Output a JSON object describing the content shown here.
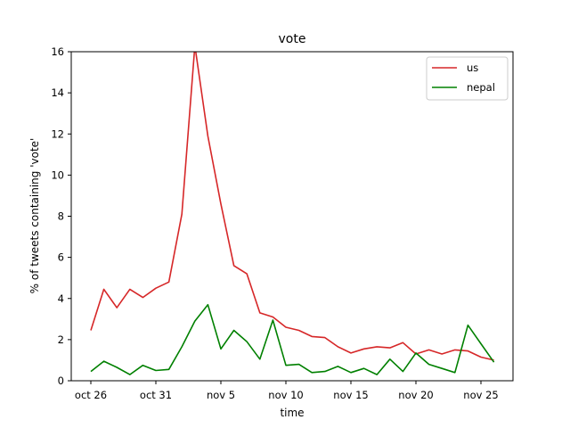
{
  "chart_data": {
    "type": "line",
    "title": "vote",
    "xlabel": "time",
    "ylabel": "% of tweets containing 'vote'",
    "x_dates": [
      "oct 26",
      "oct 27",
      "oct 28",
      "oct 29",
      "oct 30",
      "oct 31",
      "nov 1",
      "nov 2",
      "nov 3",
      "nov 4",
      "nov 5",
      "nov 6",
      "nov 7",
      "nov 8",
      "nov 9",
      "nov 10",
      "nov 11",
      "nov 12",
      "nov 13",
      "nov 14",
      "nov 15",
      "nov 16",
      "nov 17",
      "nov 18",
      "nov 19",
      "nov 20",
      "nov 21",
      "nov 22",
      "nov 23",
      "nov 24",
      "nov 25",
      "nov 26"
    ],
    "xticks": [
      "oct 26",
      "oct 31",
      "nov 5",
      "nov 10",
      "nov 15",
      "nov 20",
      "nov 25"
    ],
    "ylim": [
      0,
      16
    ],
    "yticks": [
      "0",
      "2",
      "4",
      "6",
      "8",
      "10",
      "12",
      "14",
      "16"
    ],
    "grid": false,
    "legend_position": "top-right",
    "series": [
      {
        "name": "us",
        "color": "#d62728",
        "values": [
          2.45,
          4.45,
          3.55,
          4.45,
          4.05,
          4.5,
          4.8,
          8.1,
          16.3,
          11.9,
          8.6,
          5.6,
          5.2,
          3.3,
          3.1,
          2.6,
          2.45,
          2.15,
          2.1,
          1.65,
          1.35,
          1.55,
          1.65,
          1.6,
          1.85,
          1.3,
          1.5,
          1.3,
          1.5,
          1.45,
          1.15,
          1.0
        ]
      },
      {
        "name": "nepal",
        "color": "#008000",
        "values": [
          0.45,
          0.95,
          0.65,
          0.3,
          0.75,
          0.5,
          0.55,
          1.65,
          2.9,
          3.7,
          1.55,
          2.45,
          1.9,
          1.05,
          2.95,
          0.75,
          0.8,
          0.4,
          0.45,
          0.7,
          0.4,
          0.6,
          0.3,
          1.05,
          0.45,
          1.35,
          0.8,
          0.6,
          0.4,
          2.7,
          1.8,
          0.9
        ]
      }
    ]
  }
}
